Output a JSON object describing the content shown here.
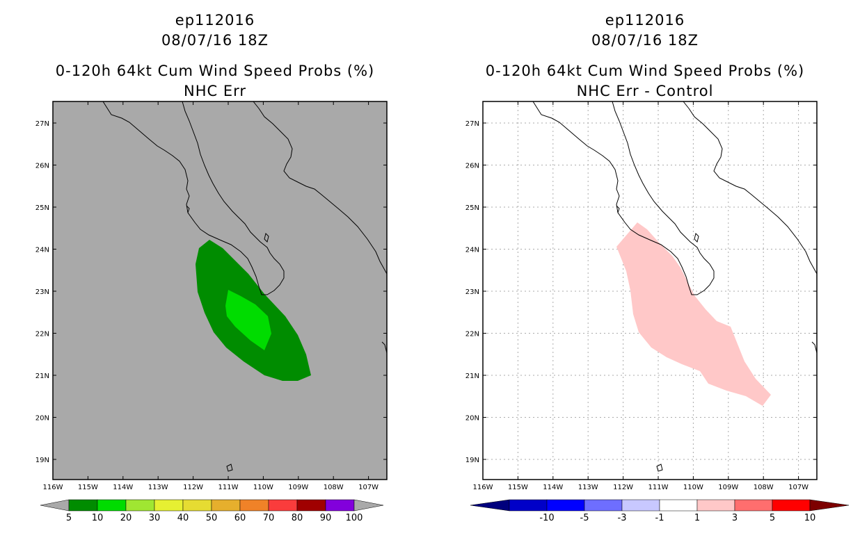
{
  "left": {
    "storm_id": "ep112016",
    "datetime": "08/07/16 18Z",
    "product": "0-120h 64kt Cum Wind Speed Probs (%)",
    "subtitle": "NHC Err",
    "background_color": "#a9a9a9",
    "lat_labels": [
      "27N",
      "26N",
      "25N",
      "24N",
      "23N",
      "22N",
      "21N",
      "20N",
      "19N"
    ],
    "lon_labels": [
      "116W",
      "115W",
      "114W",
      "113W",
      "112W",
      "111W",
      "110W",
      "109W",
      "108W",
      "107W"
    ],
    "colorbar": {
      "colors": [
        "#008c00",
        "#00dc00",
        "#a0e632",
        "#e6f032",
        "#e6dc32",
        "#e6af2d",
        "#f08228",
        "#fa3c3c",
        "#a00000",
        "#8200dc"
      ],
      "end_color": "#a9a9a9",
      "labels": [
        "5",
        "10",
        "20",
        "30",
        "40",
        "50",
        "60",
        "70",
        "80",
        "90",
        "100"
      ]
    }
  },
  "right": {
    "storm_id": "ep112016",
    "datetime": "08/07/16 18Z",
    "product": "0-120h 64kt Cum Wind Speed Probs (%)",
    "subtitle": "NHC Err - Control",
    "background_color": "#ffffff",
    "lat_labels": [
      "27N",
      "26N",
      "25N",
      "24N",
      "23N",
      "22N",
      "21N",
      "20N",
      "19N"
    ],
    "lon_labels": [
      "116W",
      "115W",
      "114W",
      "113W",
      "112W",
      "111W",
      "110W",
      "109W",
      "108W",
      "107W"
    ],
    "colorbar": {
      "colors": [
        "#0000c8",
        "#0000ff",
        "#6e6eff",
        "#c8c8ff",
        "#ffffff",
        "#ffc8c8",
        "#ff6e6e",
        "#ff0000"
      ],
      "end_left_color": "#00007d",
      "end_right_color": "#7d0000",
      "labels": [
        "-10",
        "-5",
        "-3",
        "-1",
        "1",
        "3",
        "5",
        "10"
      ]
    }
  }
}
